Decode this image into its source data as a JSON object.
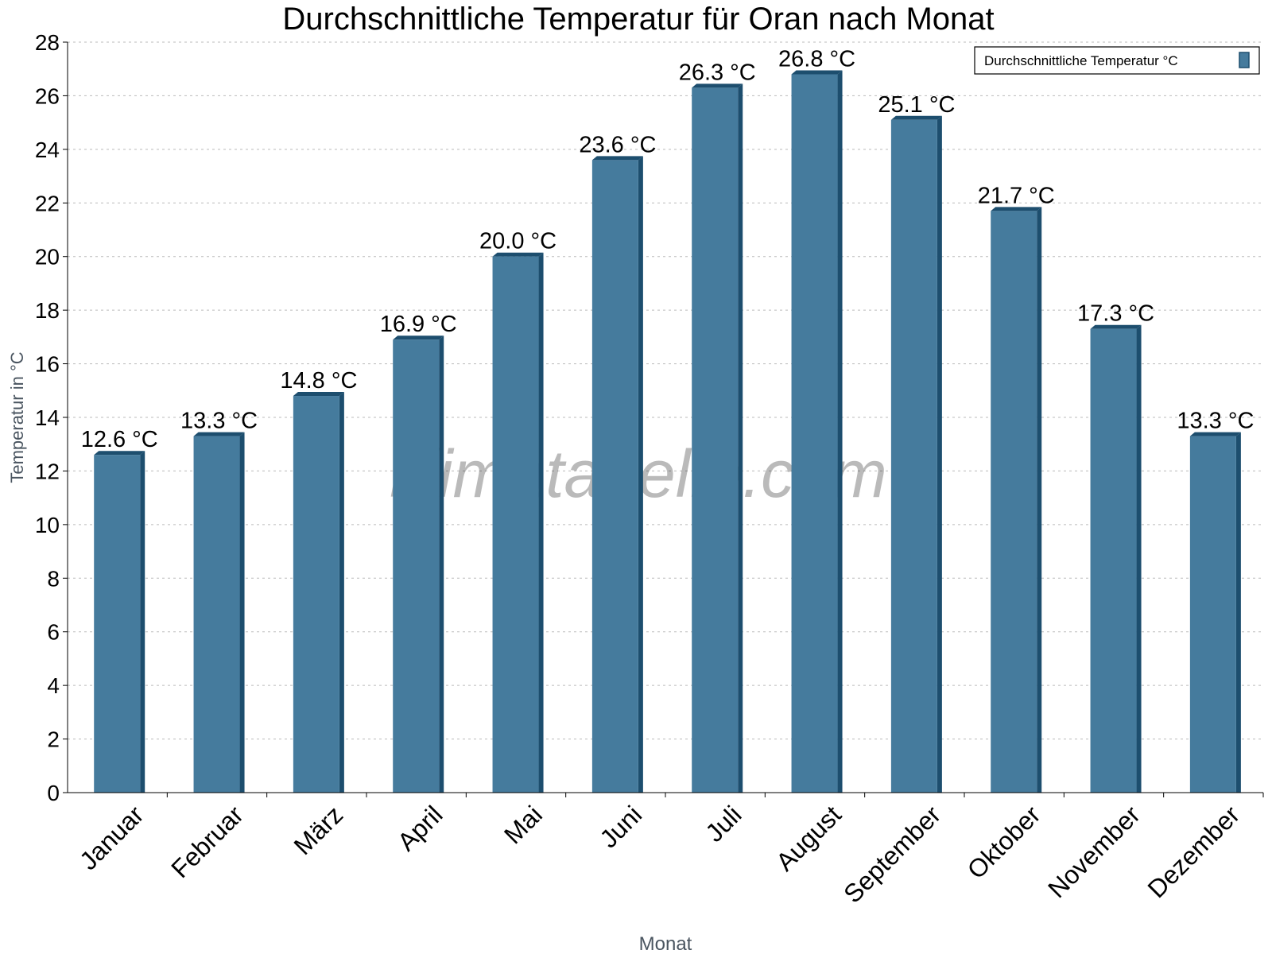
{
  "chart_data": {
    "type": "bar",
    "title": "Durchschnittliche Temperatur für Oran nach Monat",
    "xlabel": "Monat",
    "ylabel": "Temperatur in °C",
    "categories": [
      "Januar",
      "Februar",
      "März",
      "April",
      "Mai",
      "Juni",
      "Juli",
      "August",
      "September",
      "Oktober",
      "November",
      "Dezember"
    ],
    "series": [
      {
        "name": "Durchschnittliche Temperatur °C",
        "values": [
          12.6,
          13.3,
          14.8,
          16.9,
          20.0,
          23.6,
          26.3,
          26.8,
          25.1,
          21.7,
          17.3,
          13.3
        ],
        "labels": [
          "12.6 °C",
          "13.3 °C",
          "14.8 °C",
          "16.9 °C",
          "20.0 °C",
          "23.6 °C",
          "26.3 °C",
          "26.8 °C",
          "25.1 °C",
          "21.7 °C",
          "17.3 °C",
          "13.3 °C"
        ]
      }
    ],
    "ylim": [
      0,
      28
    ],
    "yticks": [
      0,
      2,
      4,
      6,
      8,
      10,
      12,
      14,
      16,
      18,
      20,
      22,
      24,
      26,
      28
    ],
    "grid": true,
    "legend": "top-right",
    "colors": {
      "bar": "#457b9d",
      "bar_side": "#1d4e6e"
    },
    "watermark": "klimatabelle.com"
  }
}
